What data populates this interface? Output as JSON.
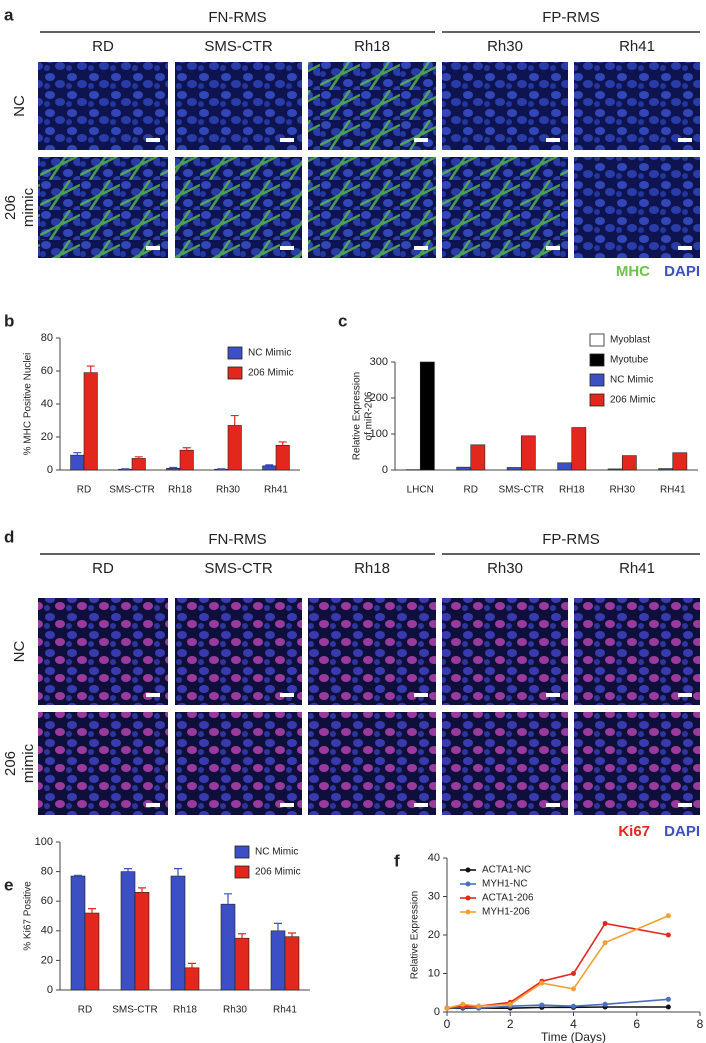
{
  "panels": {
    "a": {
      "letter": "a",
      "groups": [
        "FN-RMS",
        "FP-RMS"
      ],
      "columns": [
        "RD",
        "SMS-CTR",
        "Rh18",
        "Rh30",
        "Rh41"
      ],
      "rows": [
        {
          "lines": [
            "NC"
          ]
        },
        {
          "lines": [
            "206",
            "mimic"
          ]
        }
      ],
      "stains": [
        "MHC",
        "DAPI"
      ]
    },
    "d": {
      "letter": "d",
      "groups": [
        "FN-RMS",
        "FP-RMS"
      ],
      "columns": [
        "RD",
        "SMS-CTR",
        "Rh18",
        "Rh30",
        "Rh41"
      ],
      "rows": [
        {
          "lines": [
            "NC"
          ]
        },
        {
          "lines": [
            "206",
            "mimic"
          ]
        }
      ],
      "stains": [
        "Ki67",
        "DAPI"
      ]
    }
  },
  "chart_data": [
    {
      "type": "bar",
      "panel": "b",
      "ylabel": [
        "% MHC Positive Nuclei"
      ],
      "categories": [
        "RD",
        "SMS-CTR",
        "Rh18",
        "Rh30",
        "Rh41"
      ],
      "series": [
        {
          "name": "NC Mimic",
          "color": "#3c4fc4",
          "values": [
            9,
            0.5,
            1,
            0.5,
            2.5
          ],
          "errors": [
            1.5,
            0.2,
            0.5,
            0.2,
            0.6
          ]
        },
        {
          "name": "206 Mimic",
          "color": "#e2271c",
          "values": [
            59,
            7,
            12,
            27,
            15
          ],
          "errors": [
            4,
            1,
            1.5,
            6,
            2
          ]
        }
      ],
      "ylim": [
        0,
        80
      ],
      "yticks": [
        0,
        20,
        40,
        60,
        80
      ]
    },
    {
      "type": "bar",
      "panel": "c",
      "ylabel": [
        "Relative Expression",
        "of miR-206"
      ],
      "categories": [
        "LHCN",
        "RD",
        "SMS-CTR",
        "RH18",
        "RH30",
        "RH41"
      ],
      "series": [
        {
          "name": "Myoblast",
          "color": "#ffffff",
          "values": [
            1,
            null,
            null,
            null,
            null,
            null
          ]
        },
        {
          "name": "Myotube",
          "color": "#000000",
          "values": [
            300,
            null,
            null,
            null,
            null,
            null
          ]
        },
        {
          "name": "NC Mimic",
          "color": "#3c4fc4",
          "values": [
            null,
            8,
            7,
            20,
            3,
            4
          ]
        },
        {
          "name": "206 Mimic",
          "color": "#e2271c",
          "values": [
            null,
            70,
            95,
            118,
            40,
            48
          ]
        }
      ],
      "ylim": [
        0,
        300
      ],
      "yticks": [
        0,
        100,
        200,
        300
      ]
    },
    {
      "type": "bar",
      "panel": "e",
      "ylabel": [
        "% Ki67 Positive"
      ],
      "categories": [
        "RD",
        "SMS-CTR",
        "Rh18",
        "Rh30",
        "Rh41"
      ],
      "series": [
        {
          "name": "NC Mimic",
          "color": "#3c4fc4",
          "values": [
            77,
            80,
            77,
            58,
            40
          ],
          "errors": [
            0.5,
            2,
            5,
            7,
            5
          ]
        },
        {
          "name": "206 Mimic",
          "color": "#e2271c",
          "values": [
            52,
            66,
            15,
            35,
            36
          ],
          "errors": [
            3,
            3,
            3,
            3,
            2.5
          ]
        }
      ],
      "ylim": [
        0,
        100
      ],
      "yticks": [
        0,
        20,
        40,
        60,
        80,
        100
      ]
    },
    {
      "type": "line",
      "panel": "f",
      "ylabel": [
        "Relative Expression"
      ],
      "xlabel": "Time (Days)",
      "x": [
        0,
        0.5,
        1,
        2,
        3,
        4,
        5,
        7
      ],
      "series": [
        {
          "name": "ACTA1-NC",
          "color": "#111111",
          "values": [
            1,
            1,
            1,
            1,
            1.2,
            1.2,
            1.3,
            1.3
          ]
        },
        {
          "name": "MYH1-NC",
          "color": "#4a6fc0",
          "values": [
            1,
            1.2,
            1,
            1.5,
            1.8,
            1.5,
            2,
            3.3
          ]
        },
        {
          "name": "ACTA1-206",
          "color": "#e2271c",
          "values": [
            1,
            1.5,
            1.5,
            2.5,
            8,
            10,
            23,
            20
          ]
        },
        {
          "name": "MYH1-206",
          "color": "#f0a033",
          "values": [
            1,
            2,
            1.5,
            2,
            7.5,
            6,
            18,
            25
          ]
        }
      ],
      "xlim": [
        0,
        8
      ],
      "xticks": [
        0,
        2,
        4,
        6,
        8
      ],
      "ylim": [
        0,
        40
      ],
      "yticks": [
        0,
        10,
        20,
        30,
        40
      ]
    }
  ]
}
